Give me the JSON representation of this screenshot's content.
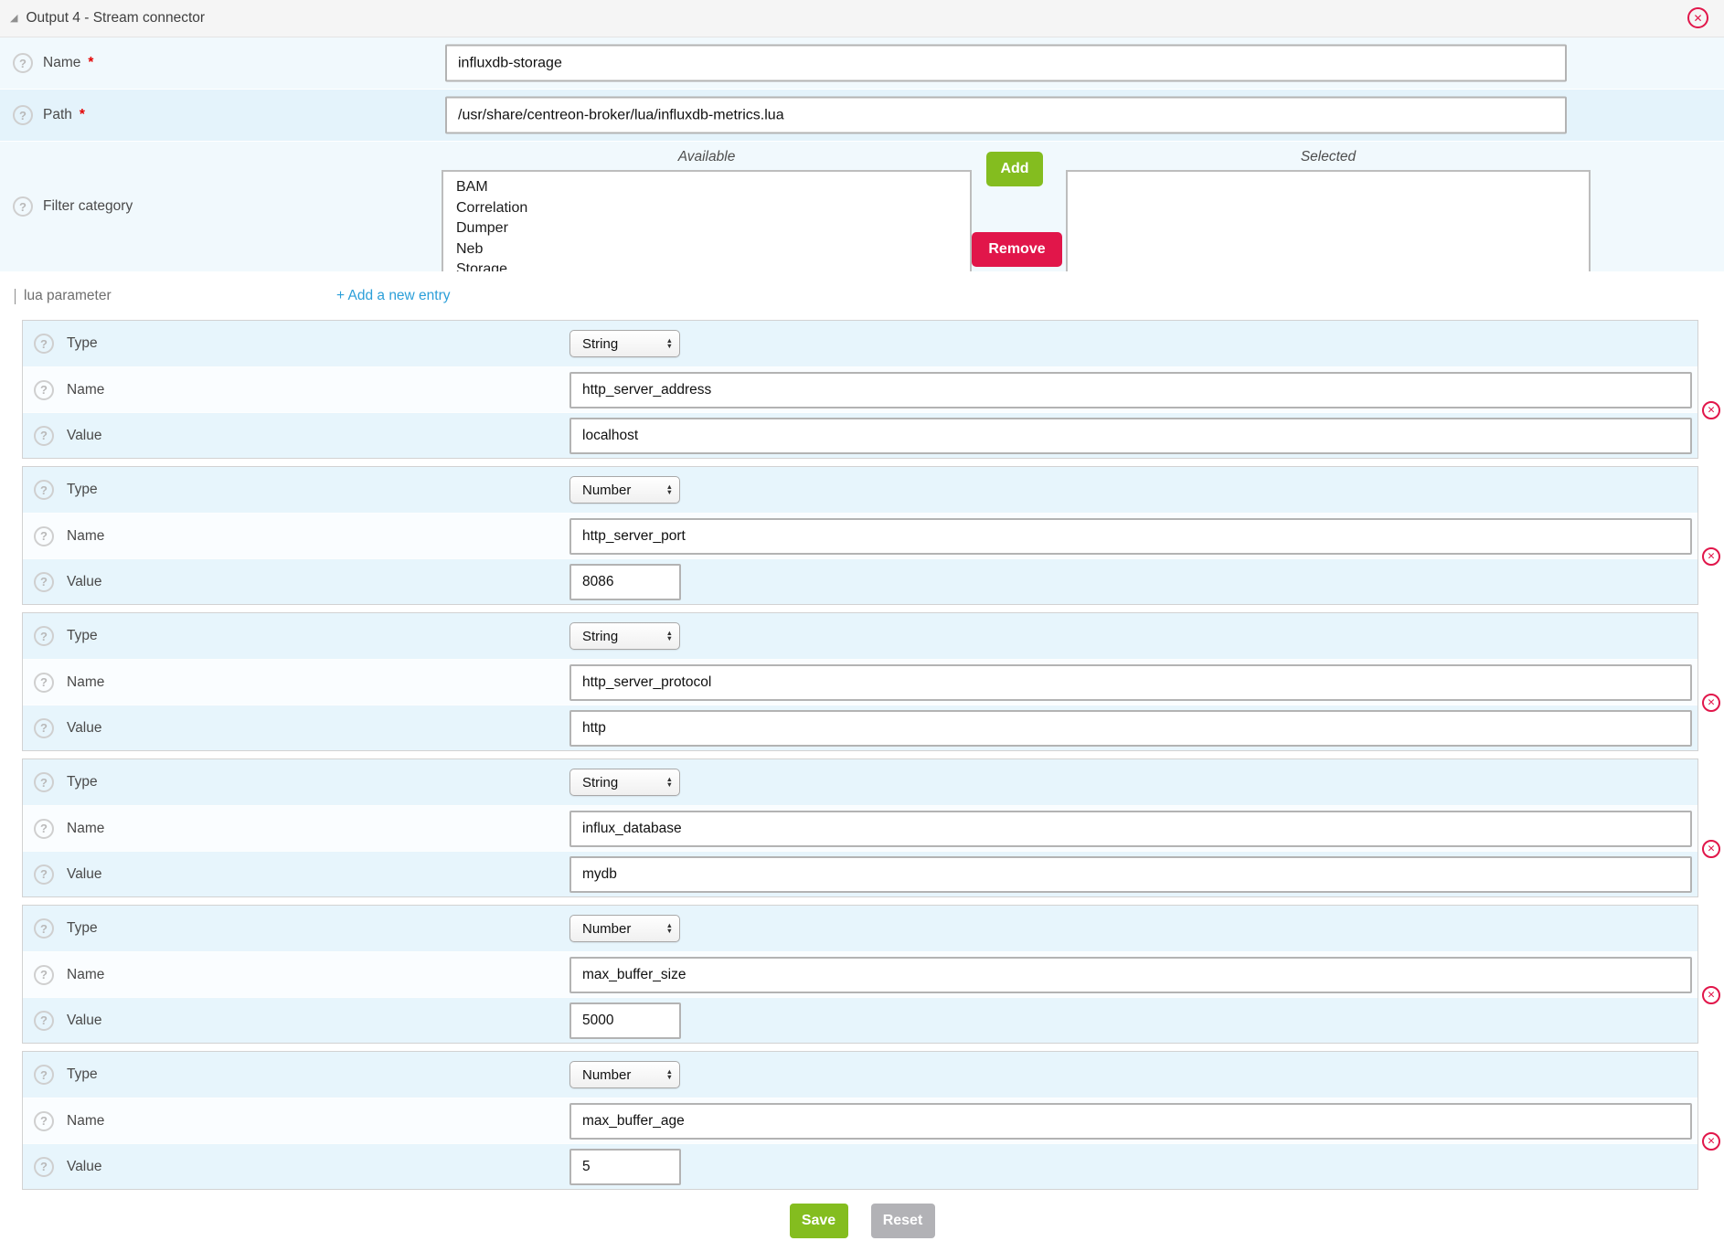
{
  "icons": {
    "help_glyph": "?",
    "close_glyph": "✕",
    "collapse_glyph": "◢",
    "stepper_up": "▲",
    "stepper_down": "▼",
    "required_marker": "*"
  },
  "colors": {
    "accent_green": "#84bd1f",
    "accent_red": "#e1164a",
    "link_blue": "#2b9fd9",
    "row_light_blue": "#e7f5fc",
    "row_near_white": "#fafdff"
  },
  "panel": {
    "title": "Output 4 - Stream connector"
  },
  "fields": {
    "name": {
      "label": "Name",
      "required": "*",
      "value": "influxdb-storage"
    },
    "path": {
      "label": "Path",
      "required": "*",
      "value": "/usr/share/centreon-broker/lua/influxdb-metrics.lua"
    },
    "filter": {
      "label": "Filter category",
      "available_label": "Available",
      "selected_label": "Selected",
      "add_label": "Add",
      "remove_label": "Remove",
      "available_options": [
        "BAM",
        "Correlation",
        "Dumper",
        "Neb",
        "Storage"
      ],
      "selected_options": []
    }
  },
  "lua_section": {
    "title": "lua parameter",
    "add_entry_label": "+ Add a new entry",
    "type_label": "Type",
    "name_label": "Name",
    "value_label": "Value",
    "entries": [
      {
        "type": "String",
        "name": "http_server_address",
        "value": "localhost"
      },
      {
        "type": "Number",
        "name": "http_server_port",
        "value": "8086"
      },
      {
        "type": "String",
        "name": "http_server_protocol",
        "value": "http"
      },
      {
        "type": "String",
        "name": "influx_database",
        "value": "mydb"
      },
      {
        "type": "Number",
        "name": "max_buffer_size",
        "value": "5000"
      },
      {
        "type": "Number",
        "name": "max_buffer_age",
        "value": "5"
      }
    ]
  },
  "actions": {
    "save_label": "Save",
    "reset_label": "Reset"
  }
}
